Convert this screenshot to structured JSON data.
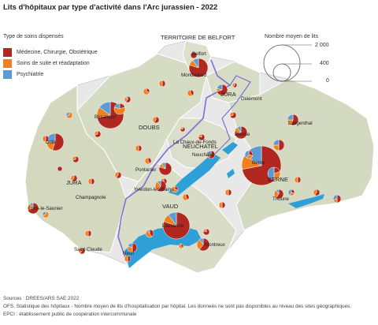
{
  "title": "Lits d'hôpitaux par type d'activité dans l'Arc jurassien - 2022",
  "legend": {
    "title": "Type de soins dispensés",
    "items": [
      {
        "label": "Médecine, Chirurgie, Obstétrique",
        "color": "#b0281f"
      },
      {
        "label": "Soins de suite et réadaptation",
        "color": "#f07f1d"
      },
      {
        "label": "Psychiatrie",
        "color": "#5b9bd5"
      }
    ]
  },
  "size_legend": {
    "title": "Nombre moyen de lits",
    "values": [
      "2 000",
      "400",
      "0"
    ]
  },
  "colors": {
    "land": "#e6e6e6",
    "region": "#d8dcc6",
    "lake": "#2f9fd8",
    "border": "#7b6fd6"
  },
  "regions": [
    "TERRITOIRE DE BELFORT",
    "JURA",
    "DOUBS",
    "NEUCHATEL",
    "BERNE",
    "JURA",
    "VAUD"
  ],
  "places": [
    "Belfort",
    "Montbéliard",
    "Delémont",
    "Besançon",
    "Langenthal",
    "Dole",
    "Bienne",
    "La Chaux-de-Fonds",
    "Neuchâtel",
    "Berne",
    "Pontarlier",
    "Champagnole",
    "Lons-le-Saunier",
    "Yverdon-les-Bains",
    "Thoune",
    "Lausanne",
    "Saint-Claude",
    "Montreux",
    "Nyon"
  ],
  "footer": {
    "line1": "Sources : DREES/ARS SAE 2022",
    "line2": "OFS, Statistique des hôpitaux - Nombre moyen de lits d'hospitalisation par hôpital. Les donneés ne sont pas disponibles au niveau des sites géographiques.",
    "line3": "EPCI : établissement public de coopération intercommunale"
  }
}
